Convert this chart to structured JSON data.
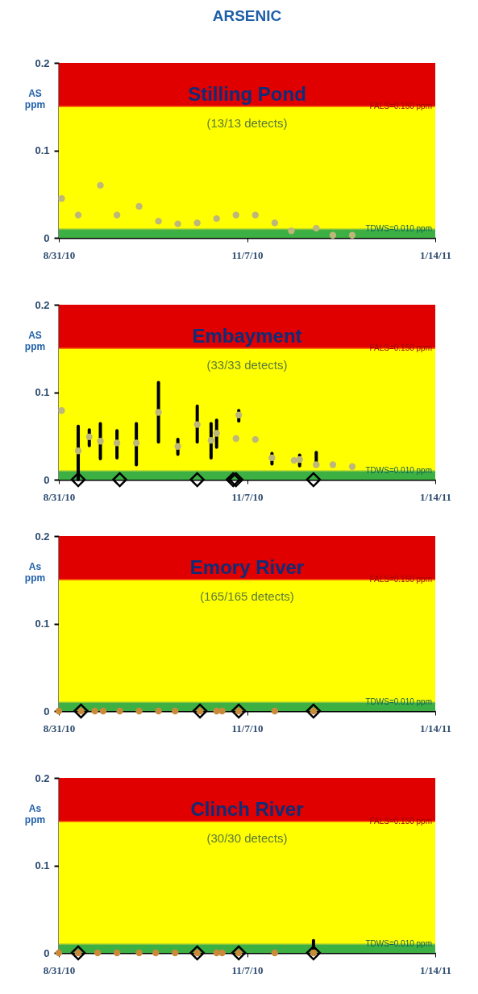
{
  "chart_data": [
    {
      "type": "scatter",
      "title": "Stilling Pond",
      "subtitle": "(13/13 detects)",
      "ylabel": "AS ppm",
      "annotations": [
        "ARSENIC"
      ],
      "xlim": [
        "2010-08-31",
        "2011-01-14"
      ],
      "xticks": [
        {
          "value": "2010-08-31",
          "label": "8/31/10"
        },
        {
          "value": "2010-11-07",
          "label": "11/7/10"
        },
        {
          "value": "2011-01-14",
          "label": "1/14/11"
        }
      ],
      "ylim": [
        0,
        0.2
      ],
      "yticks": [
        0,
        0.1,
        0.2
      ],
      "bands": [
        {
          "axis": "y",
          "from": 0.15,
          "to": 0.2,
          "color": "#e00000"
        },
        {
          "axis": "y",
          "from": 0.01,
          "to": 0.15,
          "color": "#ffff00"
        },
        {
          "axis": "y",
          "from": 0,
          "to": 0.01,
          "color": "#3cb043"
        }
      ],
      "ref_lines": [
        {
          "axis": "y",
          "value": 0.15,
          "label": "FALS=0.150 ppm",
          "color": "#ff7a00"
        },
        {
          "axis": "y",
          "value": 0.01,
          "label": "TDWS=0.010 ppm",
          "color": "#8dc63f"
        }
      ],
      "series": [
        {
          "color": "#bdb77a",
          "marker": "circle",
          "x": [
            "2010-09-01",
            "2010-09-07",
            "2010-09-15",
            "2010-09-21",
            "2010-09-29",
            "2010-10-06",
            "2010-10-13",
            "2010-10-20",
            "2010-10-27",
            "2010-11-03",
            "2010-11-10",
            "2010-11-17",
            "2010-11-23",
            "2010-12-02",
            "2010-12-08",
            "2010-12-15"
          ],
          "values": [
            0.045,
            0.026,
            0.06,
            0.026,
            0.036,
            0.019,
            0.016,
            0.017,
            0.022,
            0.026,
            0.026,
            0.017,
            0.008,
            0.011,
            0.003,
            0.003
          ]
        }
      ]
    },
    {
      "type": "scatter",
      "title": "Embayment",
      "subtitle": "(33/33 detects)",
      "ylabel": "AS ppm",
      "xlim": [
        "2010-08-31",
        "2011-01-14"
      ],
      "xticks": [
        {
          "value": "2010-08-31",
          "label": "8/31/10"
        },
        {
          "value": "2010-11-07",
          "label": "11/7/10"
        },
        {
          "value": "2011-01-14",
          "label": "1/14/11"
        }
      ],
      "ylim": [
        0,
        0.2
      ],
      "yticks": [
        0,
        0.1,
        0.2
      ],
      "bands": [
        {
          "axis": "y",
          "from": 0.15,
          "to": 0.2,
          "color": "#e00000"
        },
        {
          "axis": "y",
          "from": 0.01,
          "to": 0.15,
          "color": "#ffff00"
        },
        {
          "axis": "y",
          "from": 0,
          "to": 0.01,
          "color": "#3cb043"
        }
      ],
      "ref_lines": [
        {
          "axis": "y",
          "value": 0.15,
          "label": "FALS=0.150 ppm",
          "color": "#ff7a00"
        },
        {
          "axis": "y",
          "value": 0.01,
          "label": "TDWS=0.010 ppm",
          "color": "#8dc63f"
        }
      ],
      "series": [
        {
          "color": "#bdb77a",
          "marker": "circle",
          "x": [
            "2010-09-01",
            "2010-09-07",
            "2010-09-11",
            "2010-09-15",
            "2010-09-21",
            "2010-09-28",
            "2010-10-06",
            "2010-10-13",
            "2010-10-20",
            "2010-10-25",
            "2010-10-27",
            "2010-11-03",
            "2010-11-04",
            "2010-11-10",
            "2010-11-16",
            "2010-11-24",
            "2010-11-26",
            "2010-12-02",
            "2010-12-08",
            "2010-12-15"
          ],
          "values": [
            0.079,
            0.033,
            0.049,
            0.044,
            0.042,
            0.042,
            0.077,
            0.038,
            0.063,
            0.045,
            0.053,
            0.047,
            0.074,
            0.046,
            0.025,
            0.022,
            0.023,
            0.017,
            0.017,
            0.015
          ],
          "errors": [
            null,
            [
              0,
              0.061
            ],
            [
              0.039,
              0.057
            ],
            [
              0.024,
              0.064
            ],
            [
              0.025,
              0.056
            ],
            [
              0.017,
              0.064
            ],
            [
              0.043,
              0.111
            ],
            [
              0.029,
              0.046
            ],
            [
              0.043,
              0.084
            ],
            [
              0.025,
              0.064
            ],
            [
              0.037,
              0.068
            ],
            null,
            [
              0.067,
              0.079
            ],
            null,
            [
              0.018,
              0.03
            ],
            null,
            [
              0.016,
              0.028
            ],
            [
              0.017,
              0.031
            ],
            null,
            null
          ]
        },
        {
          "color": "#000000",
          "marker": "diamond",
          "x": [
            "2010-09-07",
            "2010-09-22",
            "2010-10-20",
            "2010-11-02",
            "2010-11-03",
            "2010-12-01"
          ],
          "values": [
            0,
            0,
            0,
            0,
            0,
            0
          ]
        }
      ]
    },
    {
      "type": "scatter",
      "title": "Emory River",
      "subtitle": "(165/165 detects)",
      "ylabel": "As ppm",
      "xlim": [
        "2010-08-31",
        "2011-01-14"
      ],
      "xticks": [
        {
          "value": "2010-08-31",
          "label": "8/31/10"
        },
        {
          "value": "2010-11-07",
          "label": "11/7/10"
        },
        {
          "value": "2011-01-14",
          "label": "1/14/11"
        }
      ],
      "ylim": [
        0,
        0.2
      ],
      "yticks": [
        0,
        0.1,
        0.2
      ],
      "bands": [
        {
          "axis": "y",
          "from": 0.15,
          "to": 0.2,
          "color": "#e00000"
        },
        {
          "axis": "y",
          "from": 0.01,
          "to": 0.15,
          "color": "#ffff00"
        },
        {
          "axis": "y",
          "from": 0,
          "to": 0.01,
          "color": "#3cb043"
        }
      ],
      "ref_lines": [
        {
          "axis": "y",
          "value": 0.15,
          "label": "FALS=0.150 ppm",
          "color": "#ff7a00"
        },
        {
          "axis": "y",
          "value": 0.01,
          "label": "TDWS=0.010 ppm",
          "color": "#8dc63f"
        }
      ],
      "series": [
        {
          "color": "#c98a3a",
          "marker": "circle",
          "x": [
            "2010-08-31",
            "2010-09-08",
            "2010-09-13",
            "2010-09-16",
            "2010-09-22",
            "2010-09-29",
            "2010-10-06",
            "2010-10-12",
            "2010-10-21",
            "2010-10-27",
            "2010-10-29",
            "2010-11-04",
            "2010-11-17",
            "2010-12-01"
          ],
          "values": [
            0,
            0,
            0,
            0,
            0,
            0,
            0,
            0,
            0,
            0,
            0,
            0,
            0,
            0
          ]
        },
        {
          "color": "#000000",
          "marker": "diamond",
          "x": [
            "2010-09-08",
            "2010-10-21",
            "2010-11-04",
            "2010-12-01"
          ],
          "values": [
            0,
            0,
            0,
            0
          ]
        }
      ]
    },
    {
      "type": "scatter",
      "title": "Clinch River",
      "subtitle": "(30/30 detects)",
      "ylabel": "As ppm",
      "xlim": [
        "2010-08-31",
        "2011-01-14"
      ],
      "xticks": [
        {
          "value": "2010-08-31",
          "label": "8/31/10"
        },
        {
          "value": "2010-11-07",
          "label": "11/7/10"
        },
        {
          "value": "2011-01-14",
          "label": "1/14/11"
        }
      ],
      "ylim": [
        0,
        0.2
      ],
      "yticks": [
        0,
        0.1,
        0.2
      ],
      "bands": [
        {
          "axis": "y",
          "from": 0.15,
          "to": 0.2,
          "color": "#e00000"
        },
        {
          "axis": "y",
          "from": 0.01,
          "to": 0.15,
          "color": "#ffff00"
        },
        {
          "axis": "y",
          "from": 0,
          "to": 0.01,
          "color": "#3cb043"
        }
      ],
      "ref_lines": [
        {
          "axis": "y",
          "value": 0.15,
          "label": "FALS=0.150 ppm",
          "color": "#ff7a00"
        },
        {
          "axis": "y",
          "value": 0.01,
          "label": "TDWS=0.010 ppm",
          "color": "#8dc63f"
        }
      ],
      "series": [
        {
          "color": "#c98a3a",
          "marker": "circle",
          "x": [
            "2010-08-31",
            "2010-09-07",
            "2010-09-14",
            "2010-09-21",
            "2010-09-29",
            "2010-10-05",
            "2010-10-12",
            "2010-10-20",
            "2010-10-27",
            "2010-10-29",
            "2010-11-04",
            "2010-11-17",
            "2010-12-01"
          ],
          "values": [
            0,
            0,
            0,
            0,
            0,
            0,
            0,
            0,
            0,
            0,
            0,
            0,
            0
          ]
        },
        {
          "color": "#000000",
          "marker": "diamond",
          "x": [
            "2010-09-07",
            "2010-10-20",
            "2010-11-04",
            "2010-12-01"
          ],
          "values": [
            0,
            0,
            0,
            0
          ],
          "errors": [
            null,
            null,
            null,
            [
              0,
              0.014
            ]
          ]
        }
      ]
    }
  ]
}
